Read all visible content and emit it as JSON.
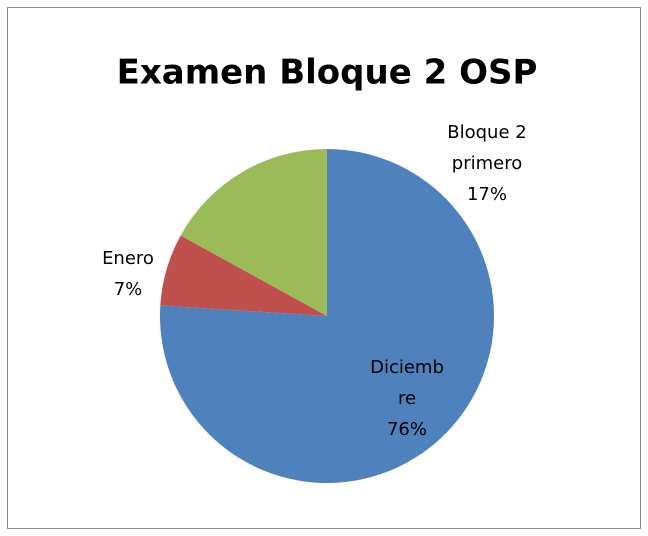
{
  "chart_data": {
    "type": "pie",
    "title": "Examen Bloque 2 OSP",
    "categories": [
      "Diciembre",
      "Enero",
      "Bloque 2 primero"
    ],
    "values": [
      76,
      7,
      17
    ],
    "value_labels": [
      "76%",
      "7%",
      "17%"
    ],
    "colors": [
      "#4f81bd",
      "#c0504d",
      "#9bbb59"
    ]
  }
}
